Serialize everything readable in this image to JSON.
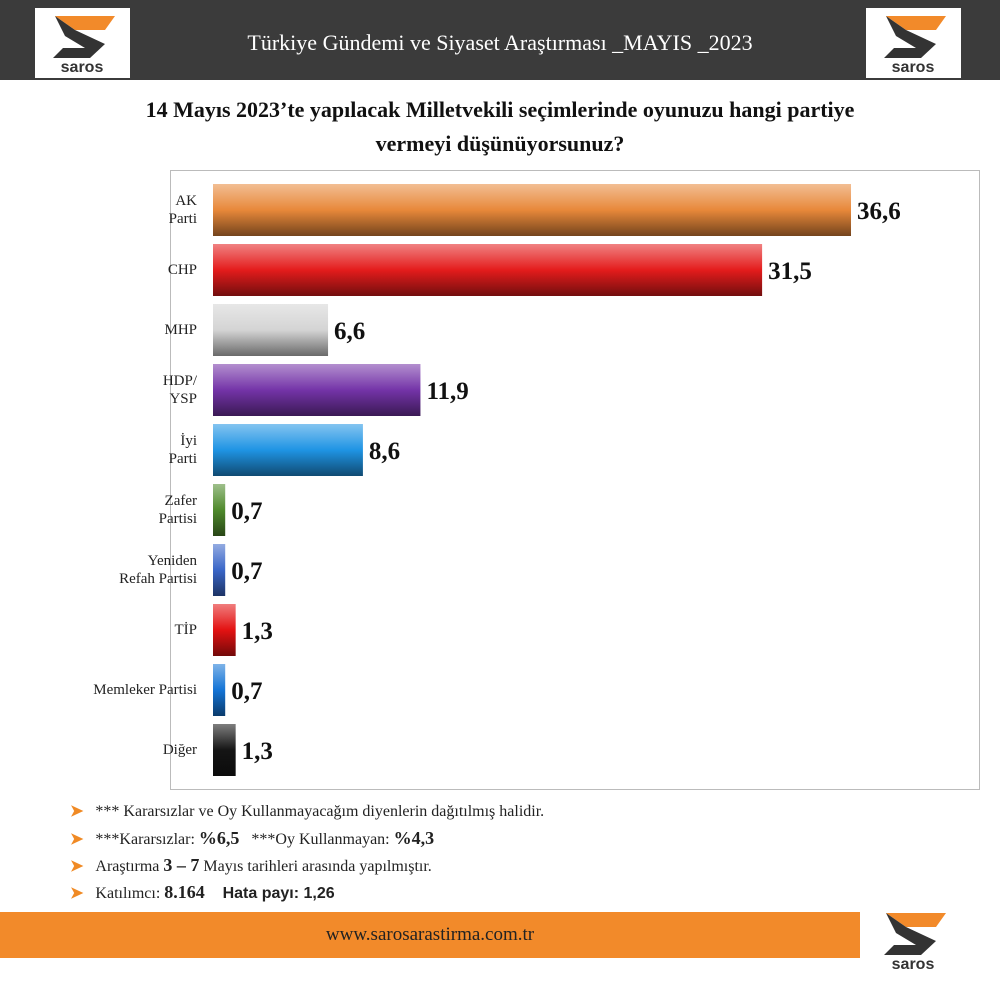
{
  "header": {
    "title": "Türkiye Gündemi ve Siyaset Araştırması _MAYIS _2023",
    "logo_text": "saros"
  },
  "chart_data": {
    "type": "hbar",
    "title": "14 Mayıs 2023’te yapılacak Milletvekili seçimlerinde oyunuzu hangi partiye\nvermeyi düşünüyorsunuz?",
    "categories": [
      "AK\nParti",
      "CHP",
      "MHP",
      "HDP/\nYSP",
      "İyi\nParti",
      "Zafer\nPartisi",
      "Yeniden\nRefah Partisi",
      "TİP",
      "Memleker Partisi",
      "Diğer"
    ],
    "values": [
      36.6,
      31.5,
      6.6,
      11.9,
      8.6,
      0.7,
      0.7,
      1.3,
      0.7,
      1.3
    ],
    "value_labels": [
      "36,6",
      "31,5",
      "6,6",
      "11,9",
      "8,6",
      "0,7",
      "0,7",
      "1,3",
      "0,7",
      "1,3"
    ],
    "colors": [
      "#e8883a",
      "#e41c1c",
      "#d4d4d4",
      "#7434a8",
      "#1f94e4",
      "#4f8a2c",
      "#3a66c8",
      "#e31212",
      "#1474d6",
      "#151515"
    ],
    "xlim": [
      0,
      44
    ]
  },
  "notes": [
    [
      {
        "text": "*** Kararsızlar ve Oy Kullanmayacağım diyenlerin dağıtılmış halidir.",
        "bold": false
      }
    ],
    [
      {
        "text": "***Kararsızlar: ",
        "bold": false
      },
      {
        "text": "%6,5",
        "bold": true
      },
      {
        "text": "   ***Oy Kullanmayan: ",
        "bold": false
      },
      {
        "text": "%4,3",
        "bold": true
      }
    ],
    [
      {
        "text": "Araştırma ",
        "bold": false
      },
      {
        "text": "3 – 7",
        "bold": true
      },
      {
        "text": " Mayıs tarihleri arasında yapılmıştır.",
        "bold": false
      }
    ],
    [
      {
        "text": "Katılımcı: ",
        "bold": false
      },
      {
        "text": "8.164",
        "bold": true
      },
      {
        "text": "    Hata payı: 1,26",
        "bold": true
      }
    ]
  ],
  "footer": {
    "url": "www.sarosarastirma.com.tr"
  }
}
